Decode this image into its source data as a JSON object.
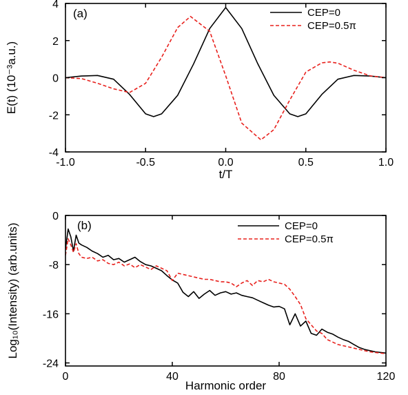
{
  "colors": {
    "cep0": "#000000",
    "cep05": "#e8201c",
    "axis": "#000000"
  },
  "chart_data": [
    {
      "type": "line",
      "panel_label": "(a)",
      "xlabel": "t/T",
      "ylabel": "E(t) (10⁻³a.u.)",
      "xlim": [
        -1.0,
        1.0
      ],
      "ylim": [
        -4,
        4
      ],
      "xticks": [
        "-1.0",
        "-0.5",
        "0.0",
        "0.5",
        "1.0"
      ],
      "xtick_values": [
        -1.0,
        -0.5,
        0.0,
        0.5,
        1.0
      ],
      "yticks": [
        "4",
        "2",
        "0",
        "-2",
        "-4"
      ],
      "ytick_values": [
        4,
        2,
        0,
        -2,
        -4
      ],
      "legend_position": "top-right",
      "series": [
        {
          "name": "CEP=0",
          "style": "solid",
          "x": [
            -1.0,
            -0.9,
            -0.8,
            -0.7,
            -0.6,
            -0.5,
            -0.45,
            -0.4,
            -0.3,
            -0.2,
            -0.1,
            0.0,
            0.1,
            0.2,
            0.3,
            0.4,
            0.45,
            0.5,
            0.6,
            0.7,
            0.8,
            0.9,
            1.0
          ],
          "y": [
            0,
            0.09,
            0.12,
            -0.08,
            -0.9,
            -1.95,
            -2.1,
            -1.95,
            -0.95,
            0.75,
            2.65,
            3.78,
            2.65,
            0.75,
            -0.95,
            -1.95,
            -2.1,
            -1.95,
            -0.9,
            -0.08,
            0.12,
            0.09,
            0
          ]
        },
        {
          "name": "CEP=0.5π",
          "style": "dashed",
          "x": [
            -1.0,
            -0.9,
            -0.8,
            -0.7,
            -0.6,
            -0.5,
            -0.4,
            -0.3,
            -0.22,
            -0.1,
            0.0,
            0.1,
            0.22,
            0.3,
            0.4,
            0.5,
            0.6,
            0.65,
            0.7,
            0.8,
            0.9,
            1.0
          ],
          "y": [
            0,
            -0.05,
            -0.3,
            -0.6,
            -0.8,
            -0.3,
            1.1,
            2.7,
            3.3,
            2.5,
            0.1,
            -2.45,
            -3.35,
            -2.8,
            -1.2,
            0.3,
            0.8,
            0.85,
            0.78,
            0.4,
            0.1,
            0
          ]
        }
      ]
    },
    {
      "type": "line",
      "panel_label": "(b)",
      "xlabel": "Harmonic order",
      "ylabel": "Log₁₀(Intensity) (arb.units)",
      "xlim": [
        0,
        120
      ],
      "ylim": [
        -24.5,
        0
      ],
      "xticks": [
        "0",
        "40",
        "80",
        "120"
      ],
      "xtick_values": [
        0,
        40,
        80,
        120
      ],
      "yticks": [
        "0",
        "-8",
        "-16",
        "-24"
      ],
      "ytick_values": [
        0,
        -8,
        -16,
        -24
      ],
      "legend_position": "top-right",
      "series": [
        {
          "name": "CEP=0",
          "style": "solid",
          "x": [
            0,
            1,
            2,
            3,
            4,
            5,
            6,
            8,
            10,
            12,
            14,
            16,
            18,
            20,
            22,
            24,
            26,
            28,
            30,
            32,
            34,
            36,
            38,
            40,
            42,
            44,
            46,
            48,
            50,
            52,
            54,
            56,
            58,
            60,
            62,
            64,
            66,
            68,
            70,
            72,
            74,
            76,
            78,
            80,
            82,
            84,
            86,
            88,
            90,
            92,
            94,
            96,
            98,
            100,
            102,
            104,
            106,
            108,
            110,
            112,
            114,
            116,
            118,
            120
          ],
          "y": [
            -5.5,
            -2.2,
            -3.5,
            -5.8,
            -3.2,
            -4.5,
            -4.8,
            -5.2,
            -5.8,
            -6.2,
            -6.8,
            -6.5,
            -7.2,
            -7.0,
            -7.6,
            -7.2,
            -6.8,
            -7.5,
            -8.0,
            -8.2,
            -8.6,
            -9.0,
            -9.8,
            -10.5,
            -11.0,
            -12.5,
            -13.2,
            -12.4,
            -13.5,
            -12.8,
            -12.2,
            -13.0,
            -12.6,
            -12.4,
            -12.8,
            -12.6,
            -13.0,
            -13.2,
            -13.4,
            -13.8,
            -14.2,
            -14.6,
            -14.9,
            -14.8,
            -15.2,
            -17.8,
            -16.0,
            -18.0,
            -17.2,
            -19.2,
            -19.5,
            -18.5,
            -19.0,
            -19.3,
            -19.8,
            -20.2,
            -20.5,
            -21.0,
            -21.5,
            -21.8,
            -22.0,
            -22.2,
            -22.3,
            -22.4
          ]
        },
        {
          "name": "CEP=0.5π",
          "style": "dashed",
          "x": [
            0,
            1,
            2,
            3,
            4,
            5,
            6,
            8,
            10,
            12,
            14,
            16,
            18,
            20,
            22,
            24,
            26,
            28,
            30,
            32,
            34,
            36,
            38,
            40,
            42,
            44,
            46,
            48,
            50,
            52,
            54,
            56,
            58,
            60,
            62,
            64,
            66,
            68,
            70,
            72,
            74,
            76,
            78,
            80,
            82,
            84,
            86,
            88,
            90,
            92,
            94,
            96,
            98,
            100,
            102,
            104,
            106,
            108,
            110,
            112,
            114,
            116,
            118,
            120
          ],
          "y": [
            -6.5,
            -3.8,
            -4.8,
            -6.0,
            -4.6,
            -6.2,
            -6.8,
            -7.0,
            -6.8,
            -7.4,
            -7.2,
            -7.8,
            -8.0,
            -7.6,
            -8.2,
            -7.9,
            -8.5,
            -8.0,
            -8.4,
            -8.8,
            -8.2,
            -8.6,
            -9.0,
            -10.6,
            -9.4,
            -9.6,
            -9.8,
            -10.0,
            -10.2,
            -10.4,
            -10.4,
            -10.6,
            -10.8,
            -10.8,
            -11.0,
            -11.6,
            -11.0,
            -10.6,
            -11.4,
            -10.6,
            -10.8,
            -10.4,
            -10.8,
            -11.0,
            -11.2,
            -12.0,
            -13.2,
            -14.5,
            -16.8,
            -17.8,
            -18.8,
            -19.2,
            -20.2,
            -20.6,
            -21.0,
            -21.2,
            -21.4,
            -21.6,
            -21.8,
            -22.0,
            -22.2,
            -22.3,
            -22.4,
            -22.5
          ]
        }
      ]
    }
  ]
}
